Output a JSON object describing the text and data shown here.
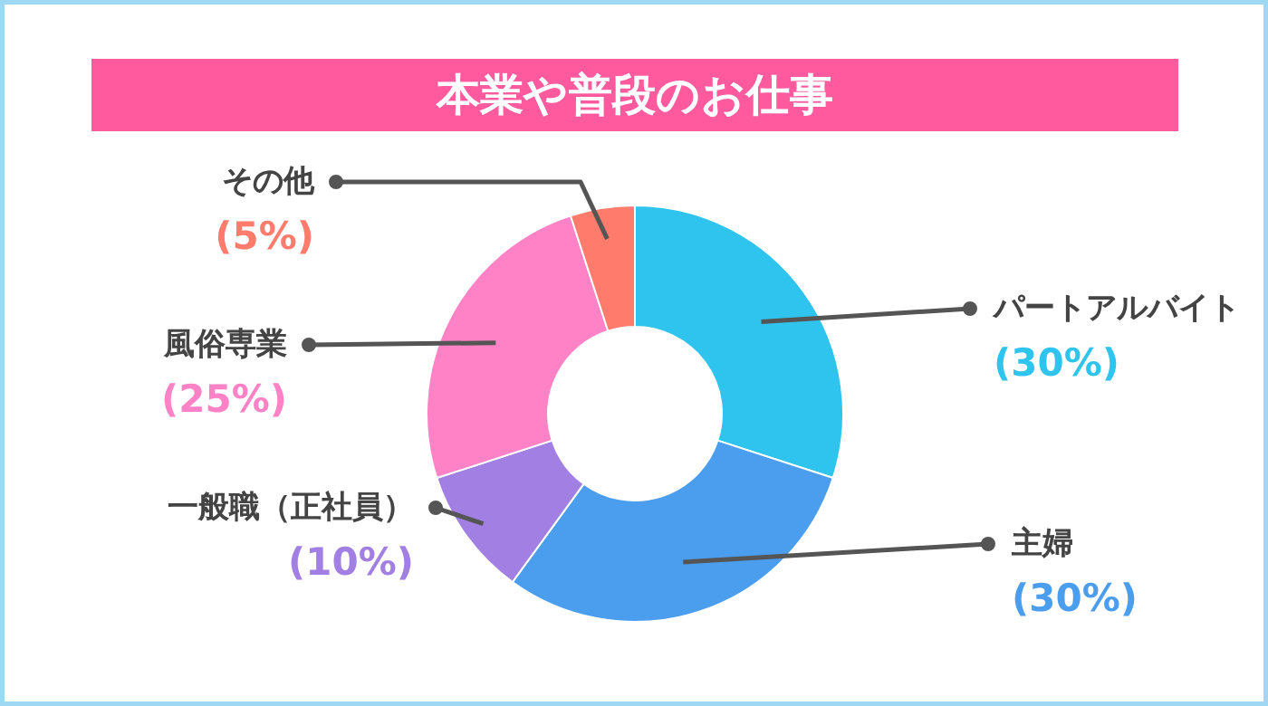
{
  "chart_data": {
    "type": "donut",
    "title": "本業や普段のお仕事",
    "categories": [
      "パートアルバイト",
      "主婦",
      "一般職（正社員）",
      "風俗専業",
      "その他"
    ],
    "values": [
      30,
      30,
      10,
      25,
      5
    ],
    "colors": [
      "#2ec4ee",
      "#4b9ded",
      "#a27fe2",
      "#ff82c6",
      "#ff7b6b"
    ],
    "value_labels": [
      "(30%)",
      "(30%)",
      "(10%)",
      "(25%)",
      "(5%)"
    ]
  }
}
